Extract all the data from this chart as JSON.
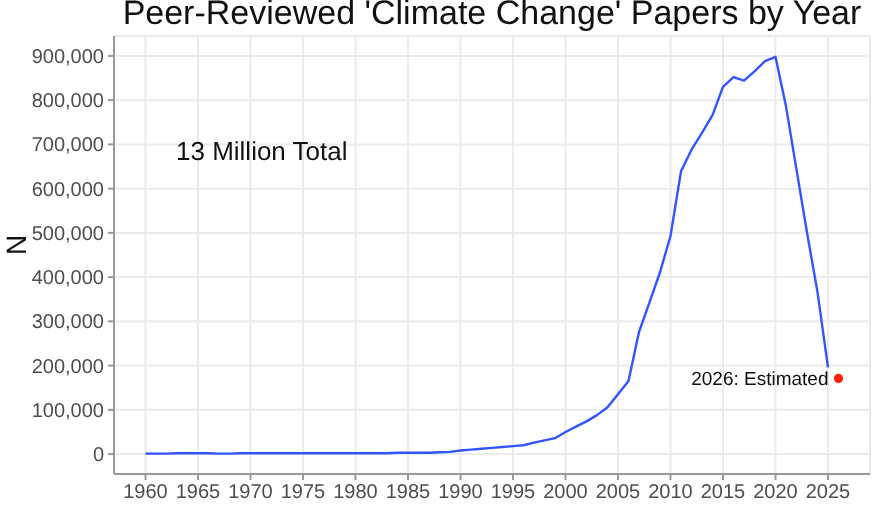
{
  "chart_data": {
    "type": "line",
    "title": "Peer-Reviewed 'Climate Change' Papers by Year",
    "ylabel": "N",
    "x": [
      1960,
      1961,
      1962,
      1963,
      1964,
      1965,
      1966,
      1967,
      1968,
      1969,
      1970,
      1971,
      1972,
      1973,
      1974,
      1975,
      1976,
      1977,
      1978,
      1979,
      1980,
      1981,
      1982,
      1983,
      1984,
      1985,
      1986,
      1987,
      1988,
      1989,
      1990,
      1991,
      1992,
      1993,
      1994,
      1995,
      1996,
      1997,
      1998,
      1999,
      2000,
      2001,
      2002,
      2003,
      2004,
      2005,
      2006,
      2007,
      2008,
      2009,
      2010,
      2011,
      2012,
      2013,
      2014,
      2015,
      2016,
      2017,
      2018,
      2019,
      2020,
      2021,
      2022,
      2023,
      2024,
      2025
    ],
    "series": [
      {
        "color": "#3355ff",
        "values": [
          1000,
          1000,
          1000,
          2000,
          2000,
          2000,
          2000,
          1000,
          1000,
          2000,
          2000,
          2000,
          2000,
          2000,
          2000,
          2000,
          2000,
          2000,
          2000,
          2000,
          2000,
          2000,
          2000,
          2000,
          3000,
          3000,
          3000,
          3000,
          4000,
          5000,
          8000,
          10000,
          12000,
          14000,
          16000,
          18000,
          20000,
          26000,
          31000,
          36000,
          50000,
          62000,
          74000,
          88000,
          106000,
          135000,
          165000,
          276000,
          343000,
          411000,
          493000,
          639000,
          688000,
          726000,
          766000,
          830000,
          852000,
          844000,
          865000,
          888000,
          898000,
          786000,
          643000,
          501000,
          366000,
          196000
        ]
      },
      {
        "type": "scatter",
        "x": [
          2026
        ],
        "color": "#ff2200",
        "values": [
          171000
        ]
      }
    ],
    "xlim": [
      1957,
      2029
    ],
    "xticks": [
      1960,
      1965,
      1970,
      1975,
      1980,
      1985,
      1990,
      1995,
      2000,
      2005,
      2010,
      2015,
      2020,
      2025
    ],
    "ylim": [
      -45000,
      945000
    ],
    "yticks": [
      0,
      {
        "value": 100000,
        "label": "100,000"
      },
      {
        "value": 200000,
        "label": "200,000"
      },
      {
        "value": 300000,
        "label": "300,000"
      },
      {
        "value": 400000,
        "label": "400,000"
      },
      {
        "value": 500000,
        "label": "500,000"
      },
      {
        "value": 600000,
        "label": "600,000"
      },
      {
        "value": 700000,
        "label": "700,000"
      },
      {
        "value": 800000,
        "label": "800,000"
      },
      {
        "value": 900000,
        "label": "900,000"
      }
    ],
    "grid": true,
    "annotations": [
      "13 Million Total",
      {
        "text": "2026: Estimated",
        "x": 2026,
        "y": 171000
      }
    ]
  }
}
